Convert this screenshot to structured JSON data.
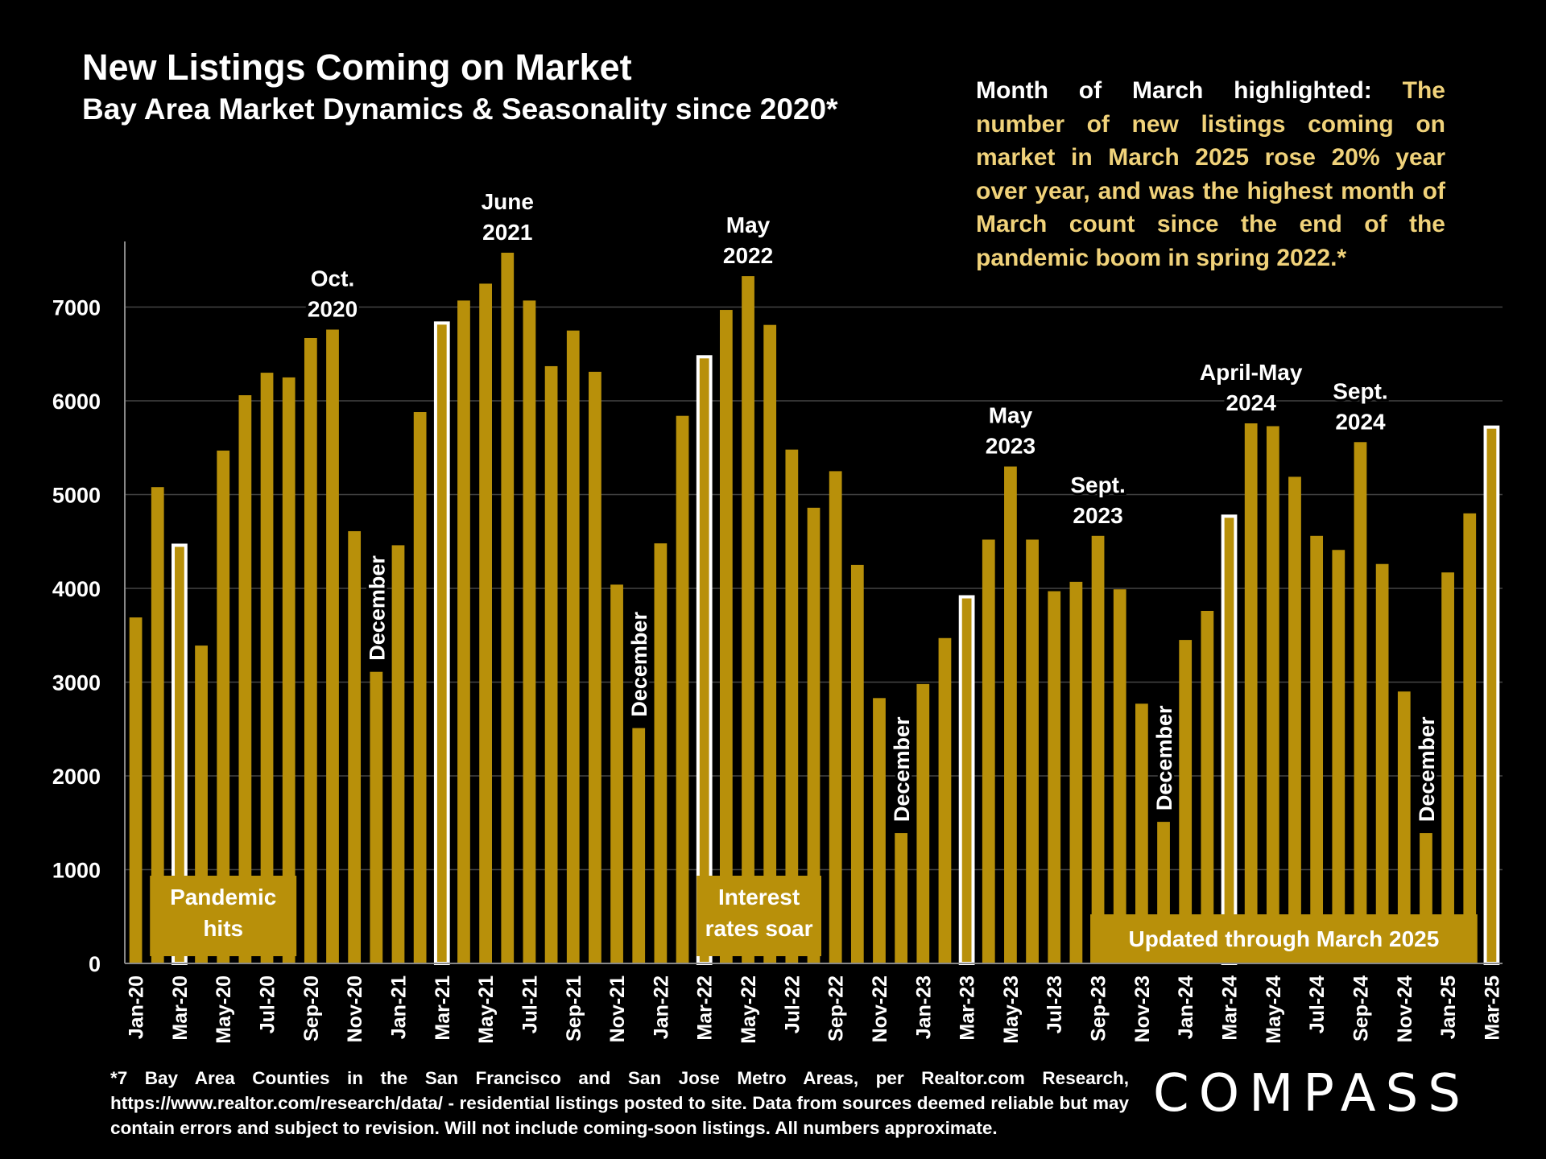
{
  "title": "New Listings Coming on Market",
  "subtitle": "Bay Area Market Dynamics & Seasonality since 2020*",
  "note": {
    "lead": "Month of March highlighted:",
    "body": "The number of new listings coming on market in March 2025 rose 20% year over year, and was the highest month of March count since the end of the pandemic boom in spring 2022.*"
  },
  "footnote": "*7 Bay Area Counties in the San Francisco and San Jose Metro Areas, per Realtor.com Research, https://www.realtor.com/research/data/ - residential listings posted to site. Data from sources deemed reliable but may contain errors and subject to revision. Will not include coming-soon listings. All numbers approximate.",
  "logo": "COMPASS",
  "colors": {
    "bar": "#b8900a",
    "highlight_outline": "#ffffff",
    "background": "#000000",
    "box": "#b8900a",
    "note_text": "#f0d27a"
  },
  "chart_data": {
    "type": "bar",
    "months": [
      "Jan-20",
      "Feb-20",
      "Mar-20",
      "Apr-20",
      "May-20",
      "Jun-20",
      "Jul-20",
      "Aug-20",
      "Sep-20",
      "Oct-20",
      "Nov-20",
      "Dec-20",
      "Jan-21",
      "Feb-21",
      "Mar-21",
      "Apr-21",
      "May-21",
      "Jun-21",
      "Jul-21",
      "Aug-21",
      "Sep-21",
      "Oct-21",
      "Nov-21",
      "Dec-21",
      "Jan-22",
      "Feb-22",
      "Mar-22",
      "Apr-22",
      "May-22",
      "Jun-22",
      "Jul-22",
      "Aug-22",
      "Sep-22",
      "Oct-22",
      "Nov-22",
      "Dec-22",
      "Jan-23",
      "Feb-23",
      "Mar-23",
      "Apr-23",
      "May-23",
      "Jun-23",
      "Jul-23",
      "Aug-23",
      "Sep-23",
      "Oct-23",
      "Nov-23",
      "Dec-23",
      "Jan-24",
      "Feb-24",
      "Mar-24",
      "Apr-24",
      "May-24",
      "Jun-24",
      "Jul-24",
      "Aug-24",
      "Sep-24",
      "Oct-24",
      "Nov-24",
      "Dec-24",
      "Jan-25",
      "Feb-25",
      "Mar-25"
    ],
    "values": [
      3690,
      5080,
      4460,
      3390,
      5470,
      6060,
      6300,
      6250,
      6670,
      6760,
      4610,
      3110,
      4460,
      5880,
      6830,
      7070,
      7250,
      7580,
      7070,
      6370,
      6750,
      6310,
      4040,
      2510,
      4480,
      5840,
      6470,
      6970,
      7330,
      6810,
      5480,
      4860,
      5250,
      4250,
      2830,
      1390,
      2980,
      3470,
      3910,
      4520,
      5300,
      4520,
      3970,
      4070,
      4560,
      3990,
      2770,
      1510,
      3450,
      3760,
      4770,
      5760,
      5730,
      5190,
      4560,
      4410,
      5560,
      4260,
      2900,
      1390,
      4170,
      4800,
      5720
    ],
    "highlighted": [
      "Mar-20",
      "Mar-21",
      "Mar-22",
      "Mar-23",
      "Mar-24",
      "Mar-25"
    ],
    "x_tick_labels": [
      "Jan-20",
      "Mar-20",
      "May-20",
      "Jul-20",
      "Sep-20",
      "Nov-20",
      "Jan-21",
      "Mar-21",
      "May-21",
      "Jul-21",
      "Sep-21",
      "Nov-21",
      "Jan-22",
      "Mar-22",
      "May-22",
      "Jul-22",
      "Sep-22",
      "Nov-22",
      "Jan-23",
      "Mar-23",
      "May-23",
      "Jul-23",
      "Sep-23",
      "Nov-23",
      "Jan-24",
      "Mar-24",
      "May-24",
      "Jul-24",
      "Sep-24",
      "Nov-24",
      "Jan-25",
      "Mar-25"
    ],
    "y_ticks": [
      0,
      1000,
      2000,
      3000,
      4000,
      5000,
      6000,
      7000
    ],
    "ylim": [
      0,
      7700
    ],
    "grid": true,
    "annotations": [
      {
        "month": "Oct-20",
        "lines": [
          "Oct.",
          "2020"
        ]
      },
      {
        "month": "Jun-21",
        "lines": [
          "June",
          "2021"
        ]
      },
      {
        "month": "May-22",
        "lines": [
          "May",
          "2022"
        ]
      },
      {
        "month": "May-23",
        "lines": [
          "May",
          "2023"
        ]
      },
      {
        "month": "Sep-23",
        "lines": [
          "Sept.",
          "2023"
        ]
      },
      {
        "month": "Apr-24",
        "lines": [
          "April-May",
          "2024"
        ]
      },
      {
        "month": "Sep-24",
        "lines": [
          "Sept.",
          "2024"
        ]
      }
    ],
    "december_labels": [
      {
        "month": "Dec-20",
        "text": "December"
      },
      {
        "month": "Dec-21",
        "text": "December"
      },
      {
        "month": "Dec-22",
        "text": "December"
      },
      {
        "month": "Dec-23",
        "text": "December"
      },
      {
        "month": "Dec-24",
        "text": "December"
      }
    ],
    "boxes": [
      {
        "lines": [
          "Pandemic",
          "hits"
        ],
        "from": "Feb-20",
        "to": "Aug-20"
      },
      {
        "lines": [
          "Interest",
          "rates soar"
        ],
        "from": "Mar-22",
        "to": "Aug-22"
      },
      {
        "lines": [
          "Updated through March 2025"
        ],
        "from": "Sep-23",
        "to": "Feb-25"
      }
    ]
  }
}
